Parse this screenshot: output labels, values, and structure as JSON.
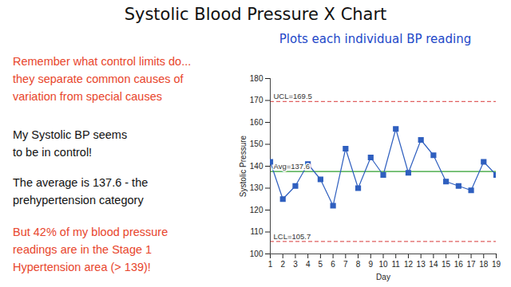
{
  "chart_data": {
    "type": "line",
    "title": "Systolic Blood Pressure X Chart",
    "subtitle": "Plots each individual BP reading",
    "x_label": "Day",
    "y_label": "Systolic Pressure",
    "x": [
      1,
      2,
      3,
      4,
      5,
      6,
      7,
      8,
      9,
      10,
      11,
      12,
      13,
      14,
      15,
      16,
      17,
      18,
      19
    ],
    "values": [
      142,
      125,
      131,
      141,
      134,
      122,
      148,
      130,
      144,
      136,
      157,
      137,
      152,
      145,
      133,
      131,
      129,
      142,
      136
    ],
    "color": "#2f5fbf",
    "marker": "square",
    "line_style": "solid",
    "xlim": [
      1,
      19
    ],
    "xticks": [
      1,
      2,
      3,
      4,
      5,
      6,
      7,
      8,
      9,
      10,
      11,
      12,
      13,
      14,
      15,
      16,
      17,
      18,
      19
    ],
    "ylim": [
      100,
      180
    ],
    "yticks": [
      100,
      110,
      120,
      130,
      140,
      150,
      160,
      170,
      180
    ],
    "grid": false,
    "reference_lines": [
      {
        "value": 169.5,
        "label": "UCL=169.5",
        "color": "#e06060",
        "line_style": "dashed"
      },
      {
        "value": 137.6,
        "label": "Avg=137.6",
        "color": "#2e9e2e",
        "line_style": "solid"
      },
      {
        "value": 105.7,
        "label": "LCL=105.7",
        "color": "#e06060",
        "line_style": "dashed"
      }
    ],
    "annotations": [
      {
        "lines": [
          "Remember what control limits do...",
          "they separate common causes of",
          "variation from special causes"
        ],
        "color": "#e8452c"
      },
      {
        "lines": [
          "My Systolic BP seems",
          "to be in control!"
        ],
        "color": "#111111"
      },
      {
        "lines": [
          "The average is 137.6  - the",
          "prehypertension category"
        ],
        "color": "#111111"
      },
      {
        "lines": [
          "But 42% of my blood pressure",
          "readings are in the Stage 1",
          "Hypertension area (> 139)!"
        ],
        "color": "#e8452c"
      }
    ]
  }
}
